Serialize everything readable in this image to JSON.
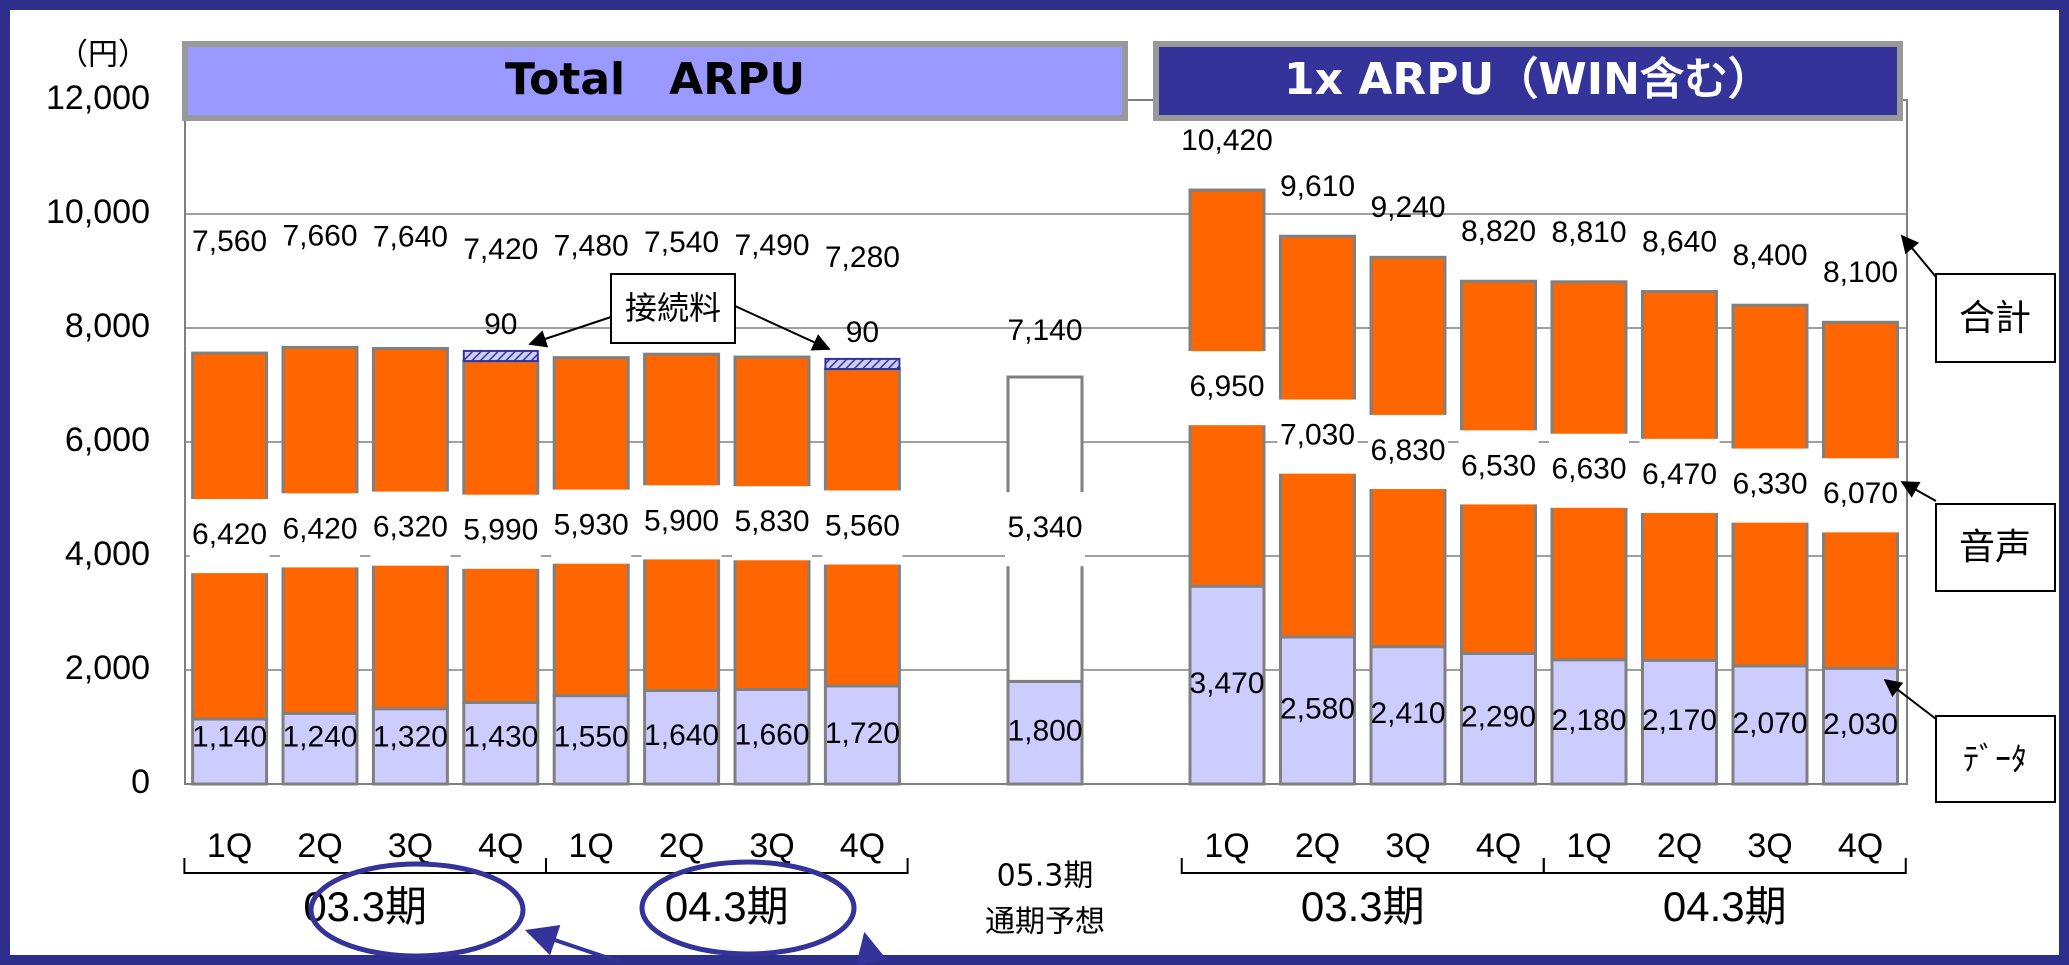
{
  "chart_data": {
    "type": "bar",
    "stacked": true,
    "y_unit": "（円）",
    "ylim": [
      0,
      12000
    ],
    "yticks": [
      0,
      {
        "value": 2000,
        "label": "2,000"
      },
      {
        "value": 4000,
        "label": "4,000"
      },
      {
        "value": 6000,
        "label": "6,000"
      },
      {
        "value": 8000,
        "label": "8,000"
      },
      {
        "value": 10000,
        "label": "10,000"
      },
      {
        "value": 12000,
        "label": "12,000"
      }
    ],
    "grid": true,
    "series_names": [
      "ﾃﾞｰﾀ",
      "音声",
      "合計"
    ],
    "colors": [
      "#ccccff",
      "#ff6600"
    ],
    "panels": [
      {
        "title": "Total　ARPU",
        "title_color": "#9999ff",
        "categories": [
          "1Q",
          "2Q",
          "3Q",
          "4Q",
          "1Q",
          "2Q",
          "3Q",
          "4Q"
        ],
        "groups": [
          "03.3期",
          "04.3期"
        ],
        "series": [
          {
            "values": [
              1140,
              1240,
              1320,
              1430,
              1550,
              1640,
              1660,
              1720
            ],
            "value_labels": [
              "1,140",
              "1,240",
              "1,320",
              "1,430",
              "1,550",
              "1,640",
              "1,660",
              "1,720"
            ]
          },
          {
            "values": [
              6420,
              6420,
              6320,
              5990,
              5930,
              5900,
              5830,
              5560
            ],
            "value_labels": [
              "6,420",
              "6,420",
              "6,320",
              "5,990",
              "5,930",
              "5,900",
              "5,830",
              "5,560"
            ]
          }
        ],
        "totals": {
          "values": [
            7560,
            7660,
            7640,
            7420,
            7480,
            7540,
            7490,
            7280
          ],
          "value_labels": [
            "7,560",
            "7,660",
            "7,640",
            "7,420",
            "7,480",
            "7,540",
            "7,490",
            "7,280"
          ]
        },
        "extra": {
          "name": "接続料",
          "values": [
            null,
            null,
            null,
            90,
            null,
            null,
            null,
            90
          ]
        }
      },
      {
        "title": "05.3期 通期予想",
        "categories": [
          "05.3期",
          "通期予想"
        ],
        "series": [
          {
            "values": [
              1800
            ],
            "value_labels": [
              "1,800"
            ]
          },
          {
            "values": [
              5340
            ],
            "value_labels": [
              "5,340"
            ]
          }
        ],
        "totals": {
          "values": [
            7140
          ],
          "value_labels": [
            "7,140"
          ]
        }
      },
      {
        "title": "1x ARPU（WIN含む）",
        "title_color": "#333399",
        "categories": [
          "1Q",
          "2Q",
          "3Q",
          "4Q",
          "1Q",
          "2Q",
          "3Q",
          "4Q"
        ],
        "groups": [
          "03.3期",
          "04.3期"
        ],
        "series": [
          {
            "values": [
              3470,
              2580,
              2410,
              2290,
              2180,
              2170,
              2070,
              2030
            ],
            "value_labels": [
              "3,470",
              "2,580",
              "2,410",
              "2,290",
              "2,180",
              "2,170",
              "2,070",
              "2,030"
            ]
          },
          {
            "values": [
              6950,
              7030,
              6830,
              6530,
              6630,
              6470,
              6330,
              6070
            ],
            "value_labels": [
              "6,950",
              "7,030",
              "6,830",
              "6,530",
              "6,630",
              "6,470",
              "6,330",
              "6,070"
            ]
          }
        ],
        "totals": {
          "values": [
            10420,
            9610,
            9240,
            8820,
            8810,
            8640,
            8400,
            8100
          ],
          "value_labels": [
            "10,420",
            "9,610",
            "9,240",
            "8,820",
            "8,810",
            "8,640",
            "8,400",
            "8,100"
          ]
        }
      }
    ]
  }
}
